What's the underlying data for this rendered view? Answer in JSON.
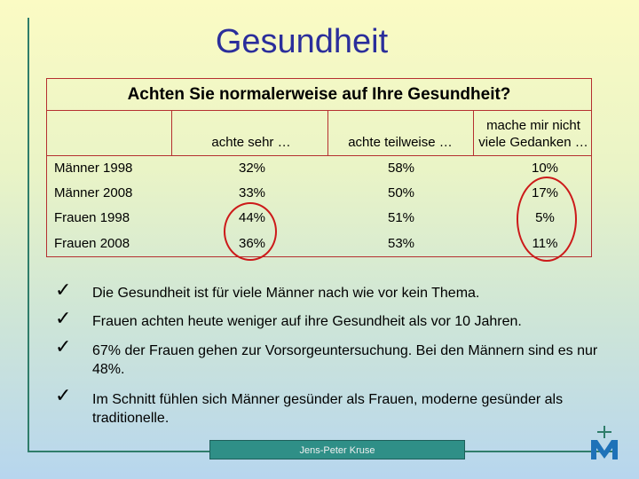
{
  "title": "Gesundheit",
  "table": {
    "heading": "Achten Sie normalerweise auf Ihre Gesundheit?",
    "columns": [
      "achte sehr …",
      "achte teilweise …",
      "mache mir nicht viele Gedanken …"
    ],
    "rows": [
      {
        "label": "Männer 1998",
        "values": [
          "32%",
          "58%",
          "10%"
        ]
      },
      {
        "label": "Männer 2008",
        "values": [
          "33%",
          "50%",
          "17%"
        ]
      },
      {
        "label": "Frauen 1998",
        "values": [
          "44%",
          "51%",
          "5%"
        ]
      },
      {
        "label": "Frauen 2008",
        "values": [
          "36%",
          "53%",
          "11%"
        ]
      }
    ]
  },
  "bullets": [
    "Die Gesundheit ist für viele Männer nach wie vor kein Thema.",
    "Frauen achten heute weniger auf ihre Gesundheit als vor 10 Jahren.",
    "67% der Frauen gehen zur Vorsorgeuntersuchung. Bei den Männern sind es nur 48%.",
    "Im Schnitt fühlen sich Männer gesünder als Frauen, moderne gesünder als traditionelle."
  ],
  "footer": "Jens-Peter Kruse",
  "icons": {
    "bullet": "checkmark-icon",
    "logo": "cross-m-logo"
  },
  "colors": {
    "title": "#2b2e9b",
    "border": "#b53030",
    "highlight": "#cc1a1a",
    "accent": "#2f8f87"
  }
}
